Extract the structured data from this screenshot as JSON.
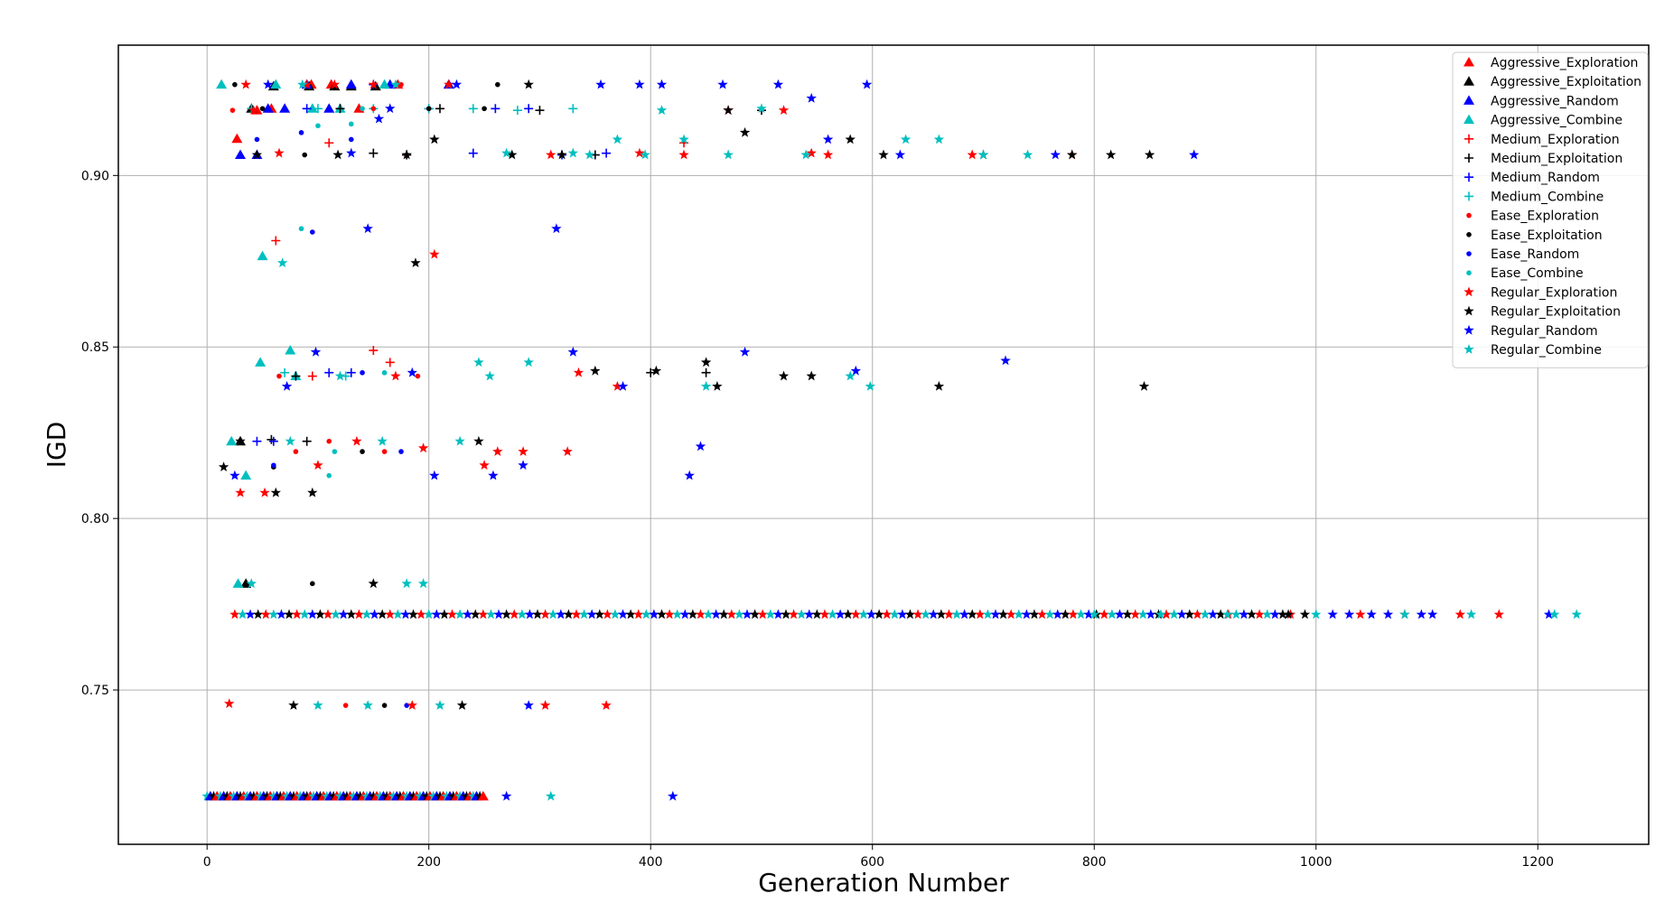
{
  "chart_data": {
    "type": "scatter",
    "title": "",
    "xlabel": "Generation Number",
    "ylabel": "IGD",
    "xlim": [
      -80,
      1300
    ],
    "ylim": [
      0.705,
      0.938
    ],
    "xticks": [
      0,
      200,
      400,
      600,
      800,
      1000,
      1200
    ],
    "yticks": [
      0.75,
      0.8,
      0.85,
      0.9
    ],
    "ytick_labels": [
      "0.75",
      "0.80",
      "0.85",
      "0.90"
    ],
    "grid": true,
    "legend_position": "top-right",
    "series": [
      {
        "name": "Aggressive_Exploration",
        "color": "#ff0000",
        "marker": "triangle",
        "x": [
          27,
          45,
          58,
          94,
          112,
          137,
          172
        ],
        "y": [
          0.9107,
          0.919,
          0.9195,
          0.9265,
          0.9265,
          0.9195,
          0.9265
        ]
      },
      {
        "name": "Aggressive_Exploitation",
        "color": "#000000",
        "marker": "triangle",
        "x": [
          30,
          35,
          40,
          60,
          92,
          115,
          130,
          152
        ],
        "y": [
          0.8225,
          0.781,
          0.9195,
          0.926,
          0.926,
          0.926,
          0.926,
          0.926
        ]
      },
      {
        "name": "Aggressive_Random",
        "color": "#0000ff",
        "marker": "triangle",
        "x": [
          30,
          45,
          55,
          70,
          90,
          110,
          130,
          165,
          218
        ],
        "y": [
          0.906,
          0.906,
          0.9195,
          0.9195,
          0.9265,
          0.9195,
          0.9265,
          0.9265,
          0.9265
        ]
      },
      {
        "name": "Aggressive_Combine",
        "color": "#00bfbf",
        "marker": "triangle",
        "x": [
          13,
          22,
          28,
          35,
          48,
          50,
          62,
          75,
          80,
          95,
          120,
          160
        ],
        "y": [
          0.9265,
          0.8225,
          0.781,
          0.8125,
          0.8455,
          0.8765,
          0.9265,
          0.849,
          0.8415,
          0.9195,
          0.9195,
          0.9265
        ]
      },
      {
        "name": "Medium_Exploration",
        "color": "#ff0000",
        "marker": "plus",
        "x": [
          62,
          95,
          110,
          150,
          165,
          180,
          430
        ],
        "y": [
          0.881,
          0.8415,
          0.9095,
          0.849,
          0.8455,
          0.906,
          0.9095
        ]
      },
      {
        "name": "Medium_Exploitation",
        "color": "#000000",
        "marker": "plus",
        "x": [
          58,
          80,
          90,
          120,
          150,
          180,
          210,
          300,
          350,
          400,
          450,
          500
        ],
        "y": [
          0.823,
          0.8415,
          0.8225,
          0.9195,
          0.9065,
          0.906,
          0.9195,
          0.919,
          0.906,
          0.8425,
          0.8425,
          0.919
        ]
      },
      {
        "name": "Medium_Random",
        "color": "#0000ff",
        "marker": "plus",
        "x": [
          45,
          60,
          90,
          110,
          130,
          150,
          200,
          240,
          260,
          290,
          320,
          360
        ],
        "y": [
          0.8225,
          0.8225,
          0.9195,
          0.8425,
          0.8425,
          0.9265,
          0.9195,
          0.9065,
          0.9195,
          0.9195,
          0.906,
          0.9065
        ]
      },
      {
        "name": "Medium_Combine",
        "color": "#00bfbf",
        "marker": "plus",
        "x": [
          40,
          70,
          100,
          125,
          150,
          200,
          240,
          280,
          330
        ],
        "y": [
          0.9195,
          0.8425,
          0.9195,
          0.8415,
          0.9195,
          0.9195,
          0.9195,
          0.919,
          0.9195
        ]
      },
      {
        "name": "Ease_Exploration",
        "color": "#ff0000",
        "marker": "dot",
        "x": [
          23,
          65,
          80,
          110,
          125,
          150,
          160,
          175,
          190
        ],
        "y": [
          0.919,
          0.8415,
          0.8195,
          0.8225,
          0.7455,
          0.9195,
          0.8195,
          0.9265,
          0.8415
        ]
      },
      {
        "name": "Ease_Exploitation",
        "color": "#000000",
        "marker": "dot",
        "x": [
          25,
          50,
          60,
          88,
          95,
          140,
          160,
          200,
          250,
          262
        ],
        "y": [
          0.9265,
          0.9195,
          0.815,
          0.906,
          0.781,
          0.8195,
          0.7455,
          0.9195,
          0.9195,
          0.9265
        ]
      },
      {
        "name": "Ease_Random",
        "color": "#0000ff",
        "marker": "dot",
        "x": [
          45,
          60,
          85,
          95,
          130,
          140,
          175,
          180
        ],
        "y": [
          0.9105,
          0.8155,
          0.9125,
          0.8835,
          0.9105,
          0.8425,
          0.8195,
          0.7455
        ]
      },
      {
        "name": "Ease_Combine",
        "color": "#00bfbf",
        "marker": "dot",
        "x": [
          85,
          100,
          110,
          115,
          130,
          140,
          160
        ],
        "y": [
          0.8845,
          0.9145,
          0.8125,
          0.8195,
          0.915,
          0.9195,
          0.8425
        ]
      },
      {
        "name": "Regular_Exploration",
        "color": "#ff0000",
        "marker": "star",
        "x": [
          20,
          30,
          35,
          42,
          52,
          65,
          90,
          100,
          115,
          135,
          150,
          170,
          185,
          195,
          205,
          218,
          250,
          262,
          285,
          305,
          310,
          325,
          335,
          360,
          370,
          390,
          430,
          470,
          520,
          545,
          560,
          690,
          780,
          1040,
          1080,
          1130,
          1165
        ],
        "y": [
          0.746,
          0.8075,
          0.9265,
          0.919,
          0.8075,
          0.9065,
          0.9265,
          0.8155,
          0.9265,
          0.8225,
          0.9265,
          0.8415,
          0.7455,
          0.8205,
          0.877,
          0.9265,
          0.8155,
          0.8195,
          0.8195,
          0.7455,
          0.906,
          0.8195,
          0.8425,
          0.7455,
          0.8385,
          0.9065,
          0.906,
          0.919,
          0.919,
          0.9065,
          0.906,
          0.906,
          0.906,
          0.772,
          0.772,
          0.772,
          0.772
        ]
      },
      {
        "name": "Regular_Exploitation",
        "color": "#000000",
        "marker": "star",
        "x": [
          15,
          30,
          45,
          62,
          78,
          95,
          118,
          150,
          180,
          188,
          205,
          230,
          245,
          275,
          290,
          320,
          350,
          405,
          450,
          460,
          470,
          485,
          520,
          545,
          580,
          610,
          660,
          700,
          780,
          815,
          845,
          850,
          975,
          990
        ],
        "y": [
          0.815,
          0.8225,
          0.906,
          0.8075,
          0.7455,
          0.8075,
          0.906,
          0.781,
          0.906,
          0.8745,
          0.9105,
          0.7455,
          0.8225,
          0.906,
          0.9265,
          0.906,
          0.843,
          0.843,
          0.8455,
          0.8385,
          0.919,
          0.9125,
          0.8415,
          0.8415,
          0.9105,
          0.906,
          0.8385,
          0.906,
          0.906,
          0.906,
          0.8385,
          0.906,
          0.772,
          0.772
        ]
      },
      {
        "name": "Regular_Random",
        "color": "#0000ff",
        "marker": "star",
        "x": [
          25,
          55,
          72,
          98,
          130,
          145,
          155,
          165,
          185,
          205,
          225,
          258,
          270,
          285,
          290,
          315,
          330,
          355,
          375,
          390,
          410,
          420,
          435,
          445,
          465,
          485,
          515,
          545,
          560,
          585,
          595,
          625,
          720,
          765,
          890,
          1015,
          1030,
          1050,
          1065,
          1095,
          1105,
          1210
        ],
        "y": [
          0.8125,
          0.9265,
          0.8385,
          0.8485,
          0.9065,
          0.8845,
          0.9165,
          0.9195,
          0.8425,
          0.8125,
          0.9265,
          0.8125,
          0.719,
          0.8155,
          0.7455,
          0.8845,
          0.8485,
          0.9265,
          0.8385,
          0.9265,
          0.9265,
          0.719,
          0.8125,
          0.821,
          0.9265,
          0.8485,
          0.9265,
          0.9225,
          0.9105,
          0.843,
          0.9265,
          0.906,
          0.846,
          0.906,
          0.906,
          0.772,
          0.772,
          0.772,
          0.772,
          0.772,
          0.772,
          0.772
        ]
      },
      {
        "name": "Regular_Combine",
        "color": "#00bfbf",
        "marker": "star",
        "x": [
          40,
          68,
          75,
          86,
          100,
          120,
          145,
          158,
          170,
          180,
          195,
          210,
          228,
          245,
          255,
          270,
          290,
          310,
          330,
          345,
          370,
          395,
          410,
          430,
          450,
          470,
          500,
          540,
          580,
          598,
          630,
          660,
          700,
          740,
          800,
          860,
          920,
          1000,
          1080,
          1140,
          1215,
          1235
        ],
        "y": [
          0.781,
          0.8745,
          0.8225,
          0.9265,
          0.7455,
          0.8415,
          0.7455,
          0.8225,
          0.9265,
          0.781,
          0.781,
          0.7455,
          0.8225,
          0.8455,
          0.8415,
          0.9065,
          0.8455,
          0.719,
          0.9065,
          0.906,
          0.9105,
          0.906,
          0.919,
          0.9105,
          0.8385,
          0.906,
          0.9195,
          0.906,
          0.8415,
          0.8385,
          0.9105,
          0.9105,
          0.906,
          0.906,
          0.772,
          0.772,
          0.772,
          0.772,
          0.772,
          0.772,
          0.772,
          0.772
        ]
      }
    ]
  }
}
